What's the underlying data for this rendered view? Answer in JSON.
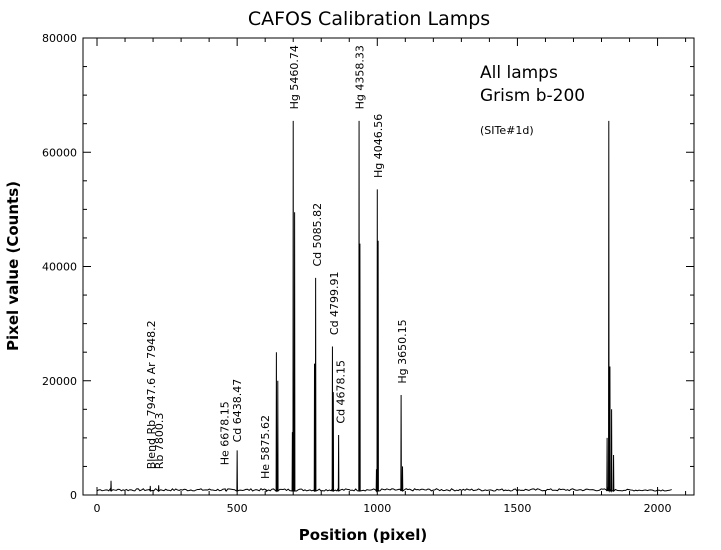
{
  "chart_data": {
    "type": "line",
    "title": "CAFOS  Calibration Lamps",
    "xlabel": "Position (pixel)",
    "ylabel": "Pixel value (Counts)",
    "xlim": [
      -50,
      2130
    ],
    "ylim": [
      0,
      80000
    ],
    "xticks": [
      0,
      500,
      1000,
      1500,
      2000
    ],
    "yticks": [
      0,
      20000,
      40000,
      60000,
      80000
    ],
    "annotations_text": [
      "All lamps",
      "Grism b-200",
      "(SITe#1d)"
    ],
    "baseline": 700,
    "peaks": [
      {
        "x": 50,
        "y": 2500
      },
      {
        "x": 190,
        "y": 1600
      },
      {
        "x": 220,
        "y": 1700
      },
      {
        "x": 460,
        "y": 900
      },
      {
        "x": 500,
        "y": 7800
      },
      {
        "x": 605,
        "y": 800
      },
      {
        "x": 640,
        "y": 25000
      },
      {
        "x": 645,
        "y": 20000
      },
      {
        "x": 700,
        "y": 65500
      },
      {
        "x": 705,
        "y": 49500
      },
      {
        "x": 697,
        "y": 11000
      },
      {
        "x": 780,
        "y": 38000
      },
      {
        "x": 776,
        "y": 23000
      },
      {
        "x": 840,
        "y": 26000
      },
      {
        "x": 843,
        "y": 18000
      },
      {
        "x": 862,
        "y": 10500
      },
      {
        "x": 935,
        "y": 65500
      },
      {
        "x": 938,
        "y": 44000
      },
      {
        "x": 1000,
        "y": 53500
      },
      {
        "x": 1003,
        "y": 44500
      },
      {
        "x": 997,
        "y": 4500
      },
      {
        "x": 1085,
        "y": 17500
      },
      {
        "x": 1090,
        "y": 5000
      },
      {
        "x": 1820,
        "y": 10000
      },
      {
        "x": 1826,
        "y": 65500
      },
      {
        "x": 1830,
        "y": 22500
      },
      {
        "x": 1836,
        "y": 15000
      },
      {
        "x": 1843,
        "y": 7000
      }
    ],
    "line_labels": [
      {
        "text": "Blend Rb 7947.6 Ar 7948.2",
        "x": 192,
        "y": 4500
      },
      {
        "text": "Rb 7800.3",
        "x": 222,
        "y": 4500
      },
      {
        "text": "He 6678.15",
        "x": 455,
        "y": 5200
      },
      {
        "text": "Cd 6438.47",
        "x": 500,
        "y": 9200
      },
      {
        "text": "He 5875.62",
        "x": 600,
        "y": 2800
      },
      {
        "text": "Hg 5460.74",
        "x": 703,
        "y": 67500
      },
      {
        "text": "Cd 5085.82",
        "x": 785,
        "y": 40000
      },
      {
        "text": "Cd 4799.91",
        "x": 845,
        "y": 28000
      },
      {
        "text": "Cd 4678.15",
        "x": 868,
        "y": 12500
      },
      {
        "text": "Hg 4358.33",
        "x": 937,
        "y": 67500
      },
      {
        "text": "Hg 4046.56",
        "x": 1003,
        "y": 55500
      },
      {
        "text": "Hg 3650.15",
        "x": 1088,
        "y": 19500
      }
    ]
  }
}
